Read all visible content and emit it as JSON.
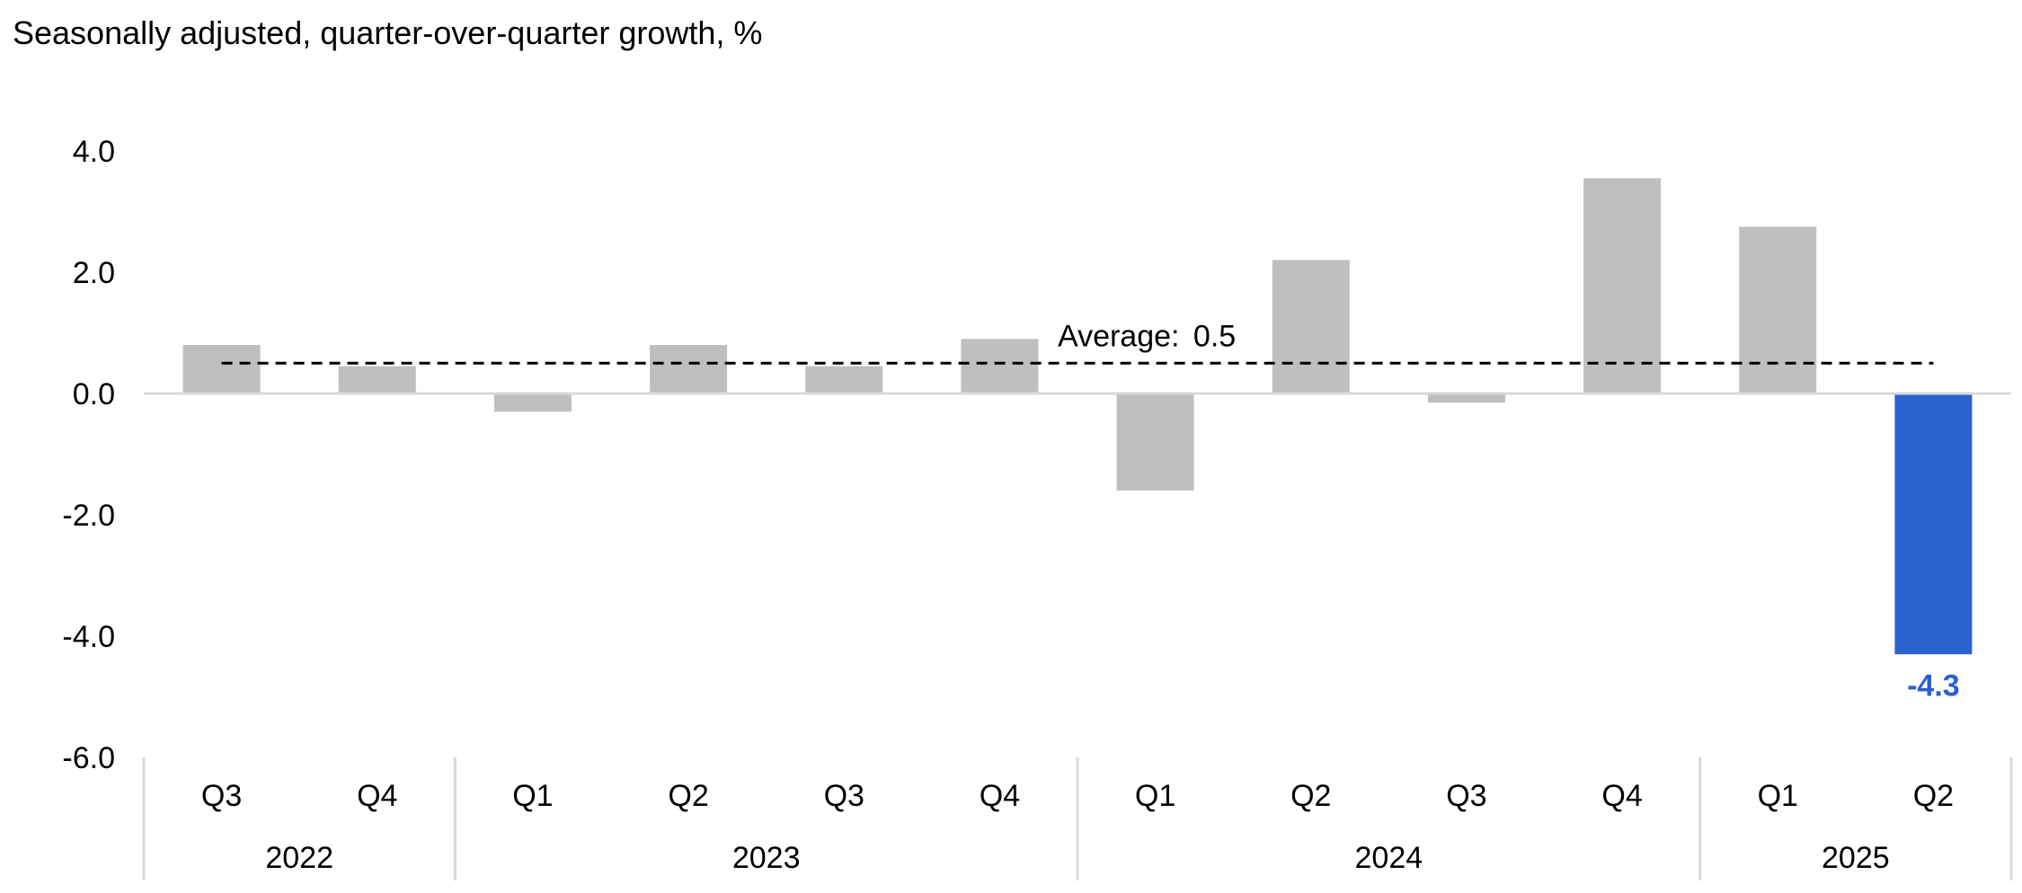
{
  "subtitle": "Seasonally adjusted, quarter-over-quarter growth, %",
  "colors": {
    "bar": "#bfbfbf",
    "highlight": "#2b60cf",
    "axis": "#d9d9d9",
    "average_line": "#000000"
  },
  "chart_data": {
    "type": "bar",
    "title": "",
    "subtitle": "Seasonally adjusted, quarter-over-quarter growth, %",
    "xlabel": "",
    "ylabel": "",
    "ylim": [
      -6,
      4
    ],
    "yticks": [
      "4.0",
      "2.0",
      "0.0",
      "-2.0",
      "-4.0",
      "-6.0"
    ],
    "ytick_values": [
      4,
      2,
      0,
      -2,
      -4,
      -6
    ],
    "categories": [
      "Q3",
      "Q4",
      "Q1",
      "Q2",
      "Q3",
      "Q4",
      "Q1",
      "Q2",
      "Q3",
      "Q4",
      "Q1",
      "Q2"
    ],
    "years": [
      {
        "label": "2022",
        "count": 2
      },
      {
        "label": "2023",
        "count": 4
      },
      {
        "label": "2024",
        "count": 4
      },
      {
        "label": "2025",
        "count": 2
      }
    ],
    "series": [
      {
        "values": [
          0.8,
          0.45,
          -0.3,
          0.8,
          0.45,
          0.9,
          -1.6,
          2.2,
          -0.15,
          3.55,
          2.75,
          -4.3
        ]
      }
    ],
    "highlight_index": 11,
    "data_labels": [
      {
        "index": 11,
        "text": "-4.3"
      }
    ],
    "average": {
      "label": "Average:",
      "value_text": "0.5",
      "value": 0.5
    },
    "grid": false,
    "legend": "none"
  }
}
